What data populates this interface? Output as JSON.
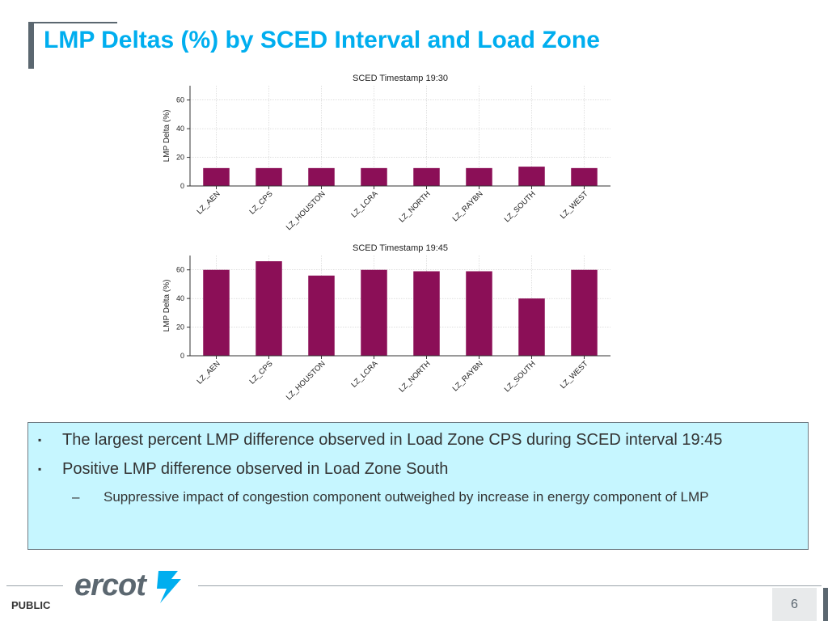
{
  "page_title": "LMP Deltas (%) by SCED Interval and Load Zone",
  "chart_data": [
    {
      "type": "bar",
      "title": "SCED Timestamp 19:30",
      "categories": [
        "LZ_AEN",
        "LZ_CPS",
        "LZ_HOUSTON",
        "LZ_LCRA",
        "LZ_NORTH",
        "LZ_RAYBN",
        "LZ_SOUTH",
        "LZ_WEST"
      ],
      "values": [
        12.5,
        12.5,
        12.5,
        12.5,
        12.5,
        12.5,
        13.5,
        12.5
      ],
      "ylabel": "LMP Delta (%)",
      "ylim": [
        0,
        70
      ],
      "yticks": [
        0,
        20,
        40,
        60
      ],
      "grid": true,
      "bar_color": "#8b0f57"
    },
    {
      "type": "bar",
      "title": "SCED Timestamp 19:45",
      "categories": [
        "LZ_AEN",
        "LZ_CPS",
        "LZ_HOUSTON",
        "LZ_LCRA",
        "LZ_NORTH",
        "LZ_RAYBN",
        "LZ_SOUTH",
        "LZ_WEST"
      ],
      "values": [
        60,
        66,
        56,
        60,
        59,
        59,
        40,
        60
      ],
      "ylabel": "LMP Delta (%)",
      "ylim": [
        0,
        70
      ],
      "yticks": [
        0,
        20,
        40,
        60
      ],
      "grid": true,
      "bar_color": "#8b0f57"
    }
  ],
  "bullets": [
    {
      "marker": "▪",
      "text": "The largest percent LMP difference observed in Load Zone CPS during SCED interval 19:45"
    },
    {
      "marker": "▪",
      "text": "Positive LMP difference observed in Load Zone South"
    }
  ],
  "sub_bullet": {
    "marker": "–",
    "text": "Suppressive impact of congestion component outweighed by increase in energy component of LMP"
  },
  "footer": {
    "classification": "PUBLIC",
    "logo_text": "ercot",
    "page_number": "6"
  },
  "colors": {
    "accent": "#00aeef",
    "bar": "#8b0f57",
    "callout_bg": "#c6f6ff",
    "logo": "#5b6770"
  }
}
